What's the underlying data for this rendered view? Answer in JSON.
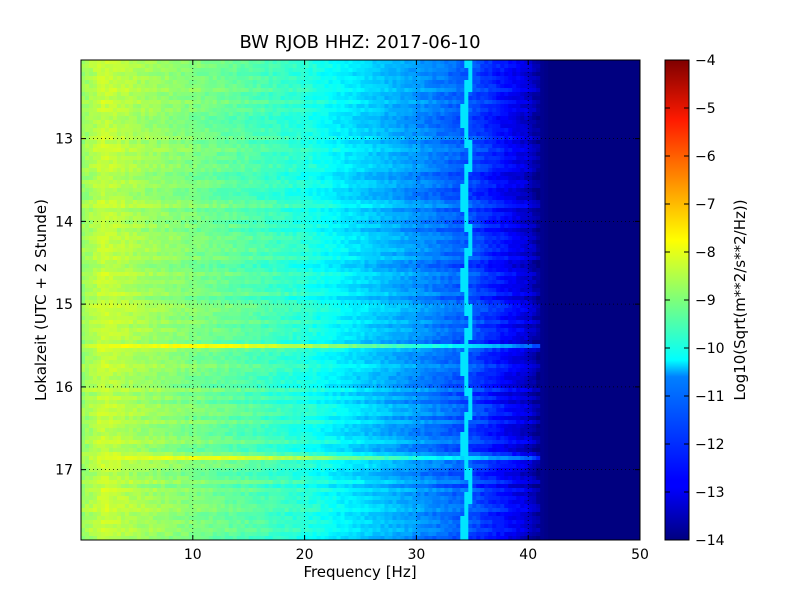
{
  "chart_data": {
    "type": "heatmap",
    "title": "BW RJOB HHZ: 2017-06-10",
    "xlabel": "Frequency [Hz]",
    "ylabel": "Lokalzeit (UTC + 2 Stunde)",
    "xlim": [
      0,
      50
    ],
    "ylim": [
      12.05,
      17.85
    ],
    "y_inverted": true,
    "grid": true,
    "xticks": [
      10,
      20,
      30,
      40,
      50
    ],
    "xtick_labels": [
      "10",
      "20",
      "30",
      "40",
      "50"
    ],
    "yticks": [
      13,
      14,
      15,
      16,
      17
    ],
    "ytick_labels": [
      "13",
      "14",
      "15",
      "16",
      "17"
    ],
    "colorbar": {
      "label": "Log10(Sqrt(m**2/s**2/Hz))",
      "range": [
        -14,
        -4
      ],
      "ticks": [
        -4,
        -5,
        -6,
        -7,
        -8,
        -9,
        -10,
        -11,
        -12,
        -13,
        -14
      ],
      "tick_labels": [
        "−4",
        "−5",
        "−6",
        "−7",
        "−8",
        "−9",
        "−10",
        "−11",
        "−12",
        "−13",
        "−14"
      ],
      "colormap": "jet"
    },
    "spectrum_profile": {
      "frequency_hz": [
        0,
        2,
        5,
        10,
        15,
        20,
        25,
        30,
        35,
        38,
        40,
        41,
        42,
        50
      ],
      "log10_amplitude": [
        -8.8,
        -8.3,
        -8.6,
        -9.0,
        -9.4,
        -9.9,
        -10.6,
        -11.3,
        -12.0,
        -12.7,
        -13.2,
        -13.8,
        -14.0,
        -14.0
      ]
    },
    "tonal_line": {
      "frequency_hz": 34.5,
      "log10_amplitude": -10.5
    },
    "broadband_events_hour": [
      15.5,
      16.85
    ]
  }
}
